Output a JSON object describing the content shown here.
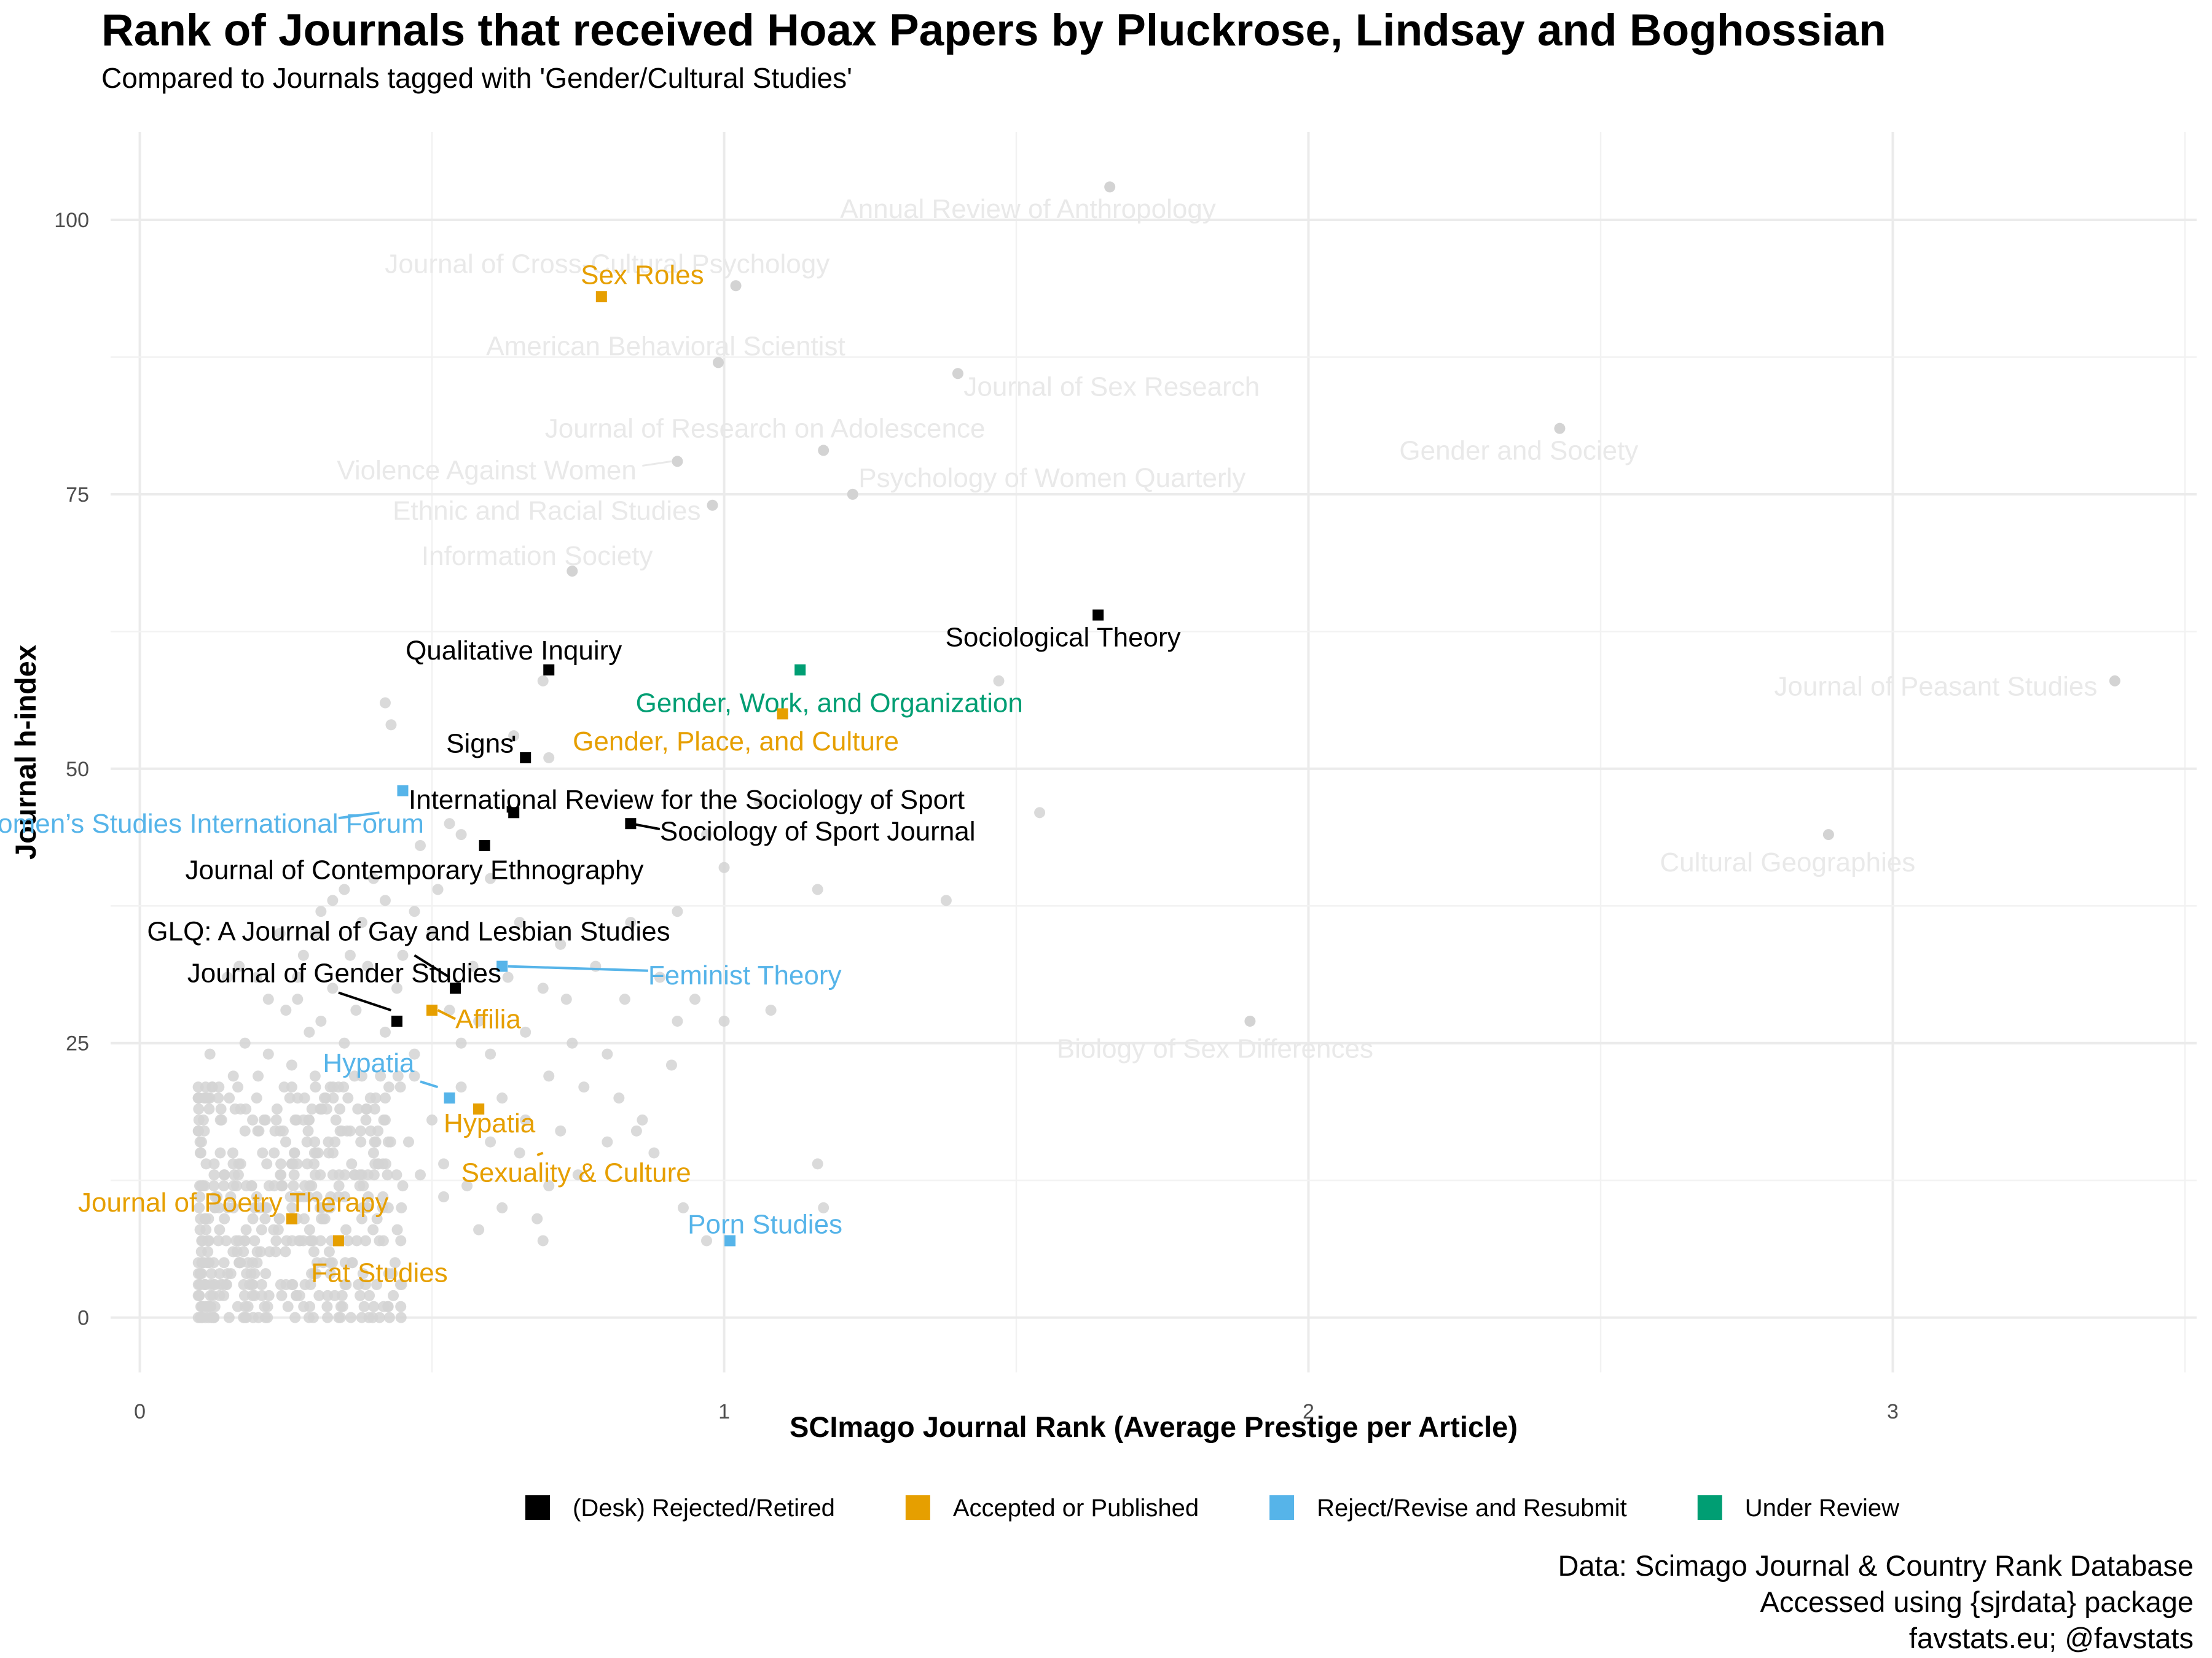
{
  "title": "Rank of Journals that received Hoax Papers by Pluckrose, Lindsay and Boghossian",
  "subtitle": "Compared to Journals tagged with 'Gender/Cultural Studies'",
  "caption": [
    "Data: Scimago Journal & Country Rank Database",
    "Accessed using {sjrdata} package",
    "favstats.eu; @favstats"
  ],
  "colors": {
    "(Desk) Rejected/Retired": "#000000",
    "Accepted or Published": "#E69F00",
    "Reject/Revise and Resubmit": "#56B4E9",
    "Under Review": "#009E73",
    "background_points": "#d3d3d3",
    "background_labels": "#e9e9e9"
  },
  "chart_data": {
    "type": "scatter",
    "xlabel": "SCImago Journal Rank (Average Prestige per Article)",
    "ylabel": "Journal h-index",
    "xlim": [
      -0.05,
      3.52
    ],
    "ylim": [
      -5,
      108
    ],
    "x_ticks": [
      0,
      1,
      2,
      3
    ],
    "y_ticks": [
      0,
      25,
      50,
      75,
      100
    ],
    "grid": true,
    "legend_position": "bottom",
    "legend": [
      "(Desk) Rejected/Retired",
      "Accepted or Published",
      "Reject/Revise and Resubmit",
      "Under Review"
    ],
    "hoax_journals": [
      {
        "name": "Sex Roles",
        "x": 0.79,
        "y": 93,
        "status": "Accepted or Published"
      },
      {
        "name": "Sociological Theory",
        "x": 1.64,
        "y": 64,
        "status": "(Desk) Rejected/Retired"
      },
      {
        "name": "Gender, Work, and Organization",
        "x": 1.13,
        "y": 59,
        "status": "Under Review"
      },
      {
        "name": "Qualitative Inquiry",
        "x": 0.7,
        "y": 59,
        "status": "(Desk) Rejected/Retired"
      },
      {
        "name": "Gender, Place, and Culture",
        "x": 1.1,
        "y": 55,
        "status": "Accepted or Published"
      },
      {
        "name": "Signs",
        "x": 0.66,
        "y": 51,
        "status": "(Desk) Rejected/Retired"
      },
      {
        "name": "Women’s Studies International Forum",
        "x": 0.45,
        "y": 48,
        "status": "Reject/Revise and Resubmit"
      },
      {
        "name": "International Review for the Sociology of Sport",
        "x": 0.64,
        "y": 46,
        "status": "(Desk) Rejected/Retired"
      },
      {
        "name": "Sociology of Sport Journal",
        "x": 0.84,
        "y": 45,
        "status": "(Desk) Rejected/Retired"
      },
      {
        "name": "Journal of Contemporary Ethnography",
        "x": 0.59,
        "y": 43,
        "status": "(Desk) Rejected/Retired"
      },
      {
        "name": "GLQ: A Journal of Gay and Lesbian Studies",
        "x": 0.54,
        "y": 30,
        "status": "(Desk) Rejected/Retired"
      },
      {
        "name": "Feminist Theory",
        "x": 0.62,
        "y": 32,
        "status": "Reject/Revise and Resubmit"
      },
      {
        "name": "Journal of Gender Studies",
        "x": 0.44,
        "y": 27,
        "status": "(Desk) Rejected/Retired"
      },
      {
        "name": "Affilia",
        "x": 0.5,
        "y": 28,
        "status": "Accepted or Published"
      },
      {
        "name": "Hypatia",
        "x": 0.53,
        "y": 20,
        "status": "Reject/Revise and Resubmit"
      },
      {
        "name": "Hypatia",
        "x": 0.58,
        "y": 19,
        "status": "Accepted or Published"
      },
      {
        "name": "Journal of Poetry Therapy",
        "x": 0.26,
        "y": 9,
        "status": "Accepted or Published"
      },
      {
        "name": "Fat Studies",
        "x": 0.34,
        "y": 7,
        "status": "Accepted or Published"
      },
      {
        "name": "Porn Studies",
        "x": 1.01,
        "y": 7,
        "status": "Reject/Revise and Resubmit"
      },
      {
        "name": "Sexuality & Culture",
        "x": 0.58,
        "y": 19,
        "status": "Accepted or Published"
      }
    ],
    "labeled_other_journals": [
      {
        "name": "Annual Review of Anthropology",
        "x": 1.66,
        "y": 103
      },
      {
        "name": "Journal of Cross-Cultural Psychology",
        "x": 1.02,
        "y": 94
      },
      {
        "name": "American Behavioral Scientist",
        "x": 0.99,
        "y": 87
      },
      {
        "name": "Journal of Sex Research",
        "x": 1.4,
        "y": 86
      },
      {
        "name": "Journal of Research on Adolescence",
        "x": 1.17,
        "y": 79
      },
      {
        "name": "Violence Against Women",
        "x": 0.92,
        "y": 78
      },
      {
        "name": "Psychology of Women Quarterly",
        "x": 1.22,
        "y": 75
      },
      {
        "name": "Ethnic and Racial Studies",
        "x": 0.98,
        "y": 74
      },
      {
        "name": "Information Society",
        "x": 0.74,
        "y": 68
      },
      {
        "name": "Gender and Society",
        "x": 2.43,
        "y": 81
      },
      {
        "name": "Journal of Peasant Studies",
        "x": 3.38,
        "y": 58
      },
      {
        "name": "Cultural Geographies",
        "x": 2.89,
        "y": 44
      },
      {
        "name": "Biology of Sex Differences",
        "x": 1.9,
        "y": 27
      }
    ],
    "other_journals": [
      [
        0.42,
        56
      ],
      [
        0.43,
        54
      ],
      [
        0.69,
        58
      ],
      [
        0.7,
        51
      ],
      [
        0.64,
        53
      ],
      [
        1.47,
        58
      ],
      [
        1.54,
        46
      ],
      [
        1.06,
        47
      ],
      [
        1.0,
        41
      ],
      [
        1.16,
        39
      ],
      [
        1.38,
        38
      ],
      [
        0.92,
        37
      ],
      [
        0.84,
        36
      ],
      [
        0.97,
        44
      ],
      [
        0.55,
        44
      ],
      [
        0.53,
        45
      ],
      [
        0.48,
        43
      ],
      [
        0.6,
        40
      ],
      [
        0.42,
        38
      ],
      [
        0.4,
        40
      ],
      [
        0.38,
        36
      ],
      [
        0.33,
        38
      ],
      [
        0.3,
        35
      ],
      [
        0.28,
        33
      ],
      [
        0.27,
        31
      ],
      [
        0.45,
        33
      ],
      [
        0.5,
        35
      ],
      [
        0.65,
        36
      ],
      [
        0.72,
        34
      ],
      [
        0.78,
        32
      ],
      [
        0.83,
        29
      ],
      [
        0.89,
        31
      ],
      [
        0.95,
        29
      ],
      [
        1.08,
        28
      ],
      [
        1.0,
        27
      ],
      [
        0.92,
        27
      ],
      [
        0.73,
        29
      ],
      [
        0.66,
        26
      ],
      [
        0.6,
        24
      ],
      [
        0.55,
        25
      ],
      [
        0.47,
        24
      ],
      [
        0.42,
        26
      ],
      [
        0.37,
        28
      ],
      [
        0.33,
        30
      ],
      [
        0.29,
        26
      ],
      [
        0.25,
        28
      ],
      [
        0.22,
        29
      ],
      [
        0.2,
        31
      ],
      [
        0.17,
        32
      ],
      [
        0.15,
        31
      ],
      [
        0.18,
        25
      ],
      [
        0.22,
        24
      ],
      [
        0.26,
        23
      ],
      [
        0.3,
        22
      ],
      [
        0.34,
        21
      ],
      [
        0.38,
        22
      ],
      [
        0.42,
        20
      ],
      [
        0.47,
        22
      ],
      [
        0.55,
        21
      ],
      [
        0.62,
        20
      ],
      [
        0.7,
        22
      ],
      [
        0.76,
        21
      ],
      [
        0.82,
        20
      ],
      [
        0.86,
        18
      ],
      [
        0.88,
        15
      ],
      [
        0.85,
        17
      ],
      [
        0.8,
        16
      ],
      [
        0.75,
        13
      ],
      [
        0.7,
        12
      ],
      [
        0.65,
        15
      ],
      [
        0.62,
        10
      ],
      [
        0.68,
        9
      ],
      [
        0.69,
        7
      ],
      [
        0.58,
        8
      ],
      [
        0.52,
        11
      ],
      [
        0.48,
        13
      ],
      [
        0.45,
        12
      ],
      [
        0.4,
        15
      ],
      [
        0.36,
        17
      ],
      [
        0.32,
        19
      ],
      [
        0.28,
        18
      ],
      [
        0.24,
        17
      ],
      [
        0.2,
        20
      ],
      [
        0.16,
        22
      ],
      [
        0.12,
        24
      ],
      [
        0.93,
        10
      ],
      [
        0.97,
        7
      ],
      [
        1.16,
        14
      ],
      [
        1.17,
        10
      ],
      [
        0.41,
        7
      ],
      [
        0.38,
        9
      ],
      [
        0.34,
        11
      ],
      [
        0.3,
        13
      ],
      [
        0.26,
        14
      ],
      [
        0.23,
        12
      ],
      [
        0.21,
        15
      ],
      [
        0.18,
        17
      ],
      [
        0.14,
        18
      ],
      [
        0.12,
        20
      ],
      [
        0.1,
        21
      ],
      [
        0.44,
        30
      ],
      [
        0.36,
        33
      ],
      [
        0.24,
        35
      ],
      [
        0.58,
        27
      ],
      [
        0.74,
        25
      ],
      [
        0.53,
        28
      ],
      [
        0.57,
        32
      ],
      [
        0.63,
        31
      ],
      [
        0.69,
        30
      ],
      [
        0.8,
        24
      ],
      [
        0.91,
        23
      ],
      [
        0.5,
        18
      ],
      [
        0.46,
        16
      ],
      [
        0.42,
        18
      ],
      [
        0.52,
        14
      ],
      [
        0.56,
        12
      ],
      [
        0.6,
        16
      ],
      [
        0.66,
        18
      ],
      [
        0.72,
        17
      ],
      [
        0.35,
        25
      ],
      [
        0.31,
        27
      ],
      [
        0.27,
        29
      ],
      [
        0.39,
        32
      ],
      [
        0.47,
        37
      ],
      [
        0.51,
        39
      ],
      [
        0.35,
        39
      ],
      [
        0.31,
        37
      ]
    ],
    "dense_cluster": {
      "x_range": [
        0.1,
        0.45
      ],
      "y_range": [
        0,
        22
      ]
    }
  }
}
